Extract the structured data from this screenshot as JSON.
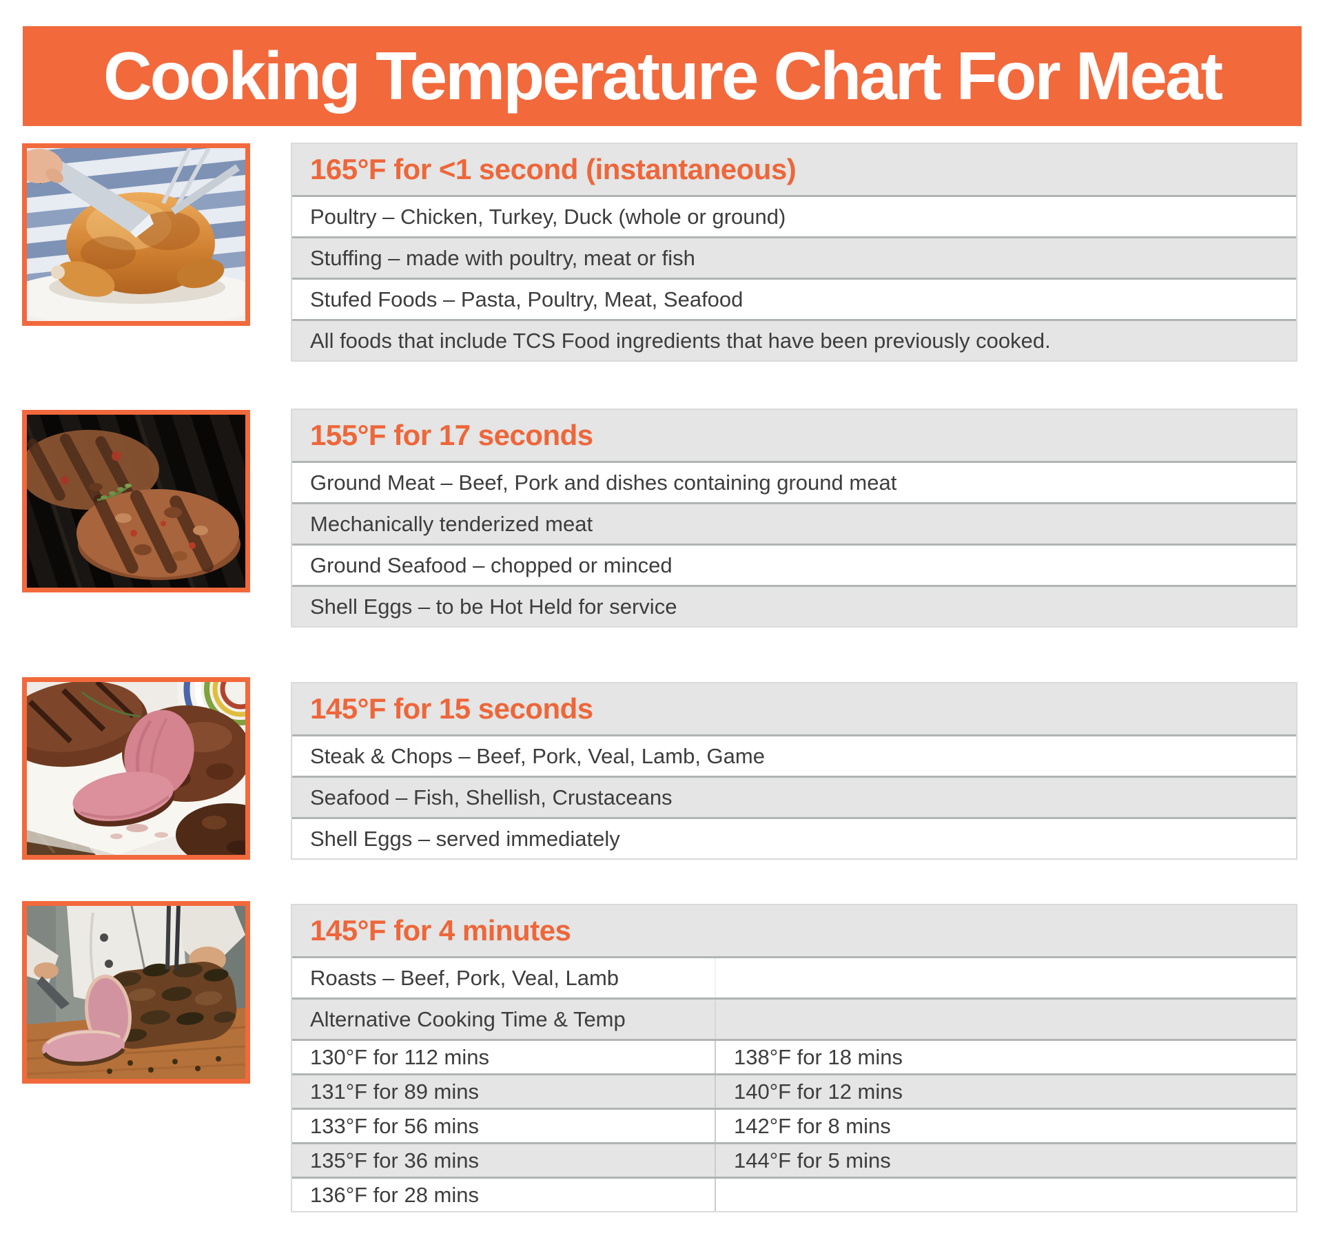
{
  "title": "Cooking Temperature Chart For Meat",
  "colors": {
    "accent_orange": "#F2693C",
    "header_text_orange": "#EE663A",
    "alt_row_gray": "#E4E5E4",
    "row_border_gray": "#B0B4B3",
    "body_text": "#3D3D3D"
  },
  "sections": [
    {
      "photo": "carving-roast-chicken-photo",
      "header": "165°F for <1 second (instantaneous)",
      "rows": [
        "Poultry – Chicken, Turkey, Duck (whole or ground)",
        "Stuffing – made with poultry, meat or fish",
        "Stufed Foods – Pasta, Poultry, Meat, Seafood",
        "All foods that include TCS Food ingredients that have been previously cooked."
      ]
    },
    {
      "photo": "burger-patties-on-grill-photo",
      "header": "155°F for 17 seconds",
      "rows": [
        "Ground Meat – Beef, Pork and dishes containing ground meat",
        "Mechanically tenderized meat",
        "Ground Seafood – chopped or minced",
        "Shell Eggs – to be Hot Held for service"
      ]
    },
    {
      "photo": "sliced-steak-photo",
      "header": "145°F for 15 seconds",
      "rows": [
        "Steak & Chops – Beef, Pork, Veal, Lamb, Game",
        "Seafood – Fish, Shellish, Crustaceans",
        "Shell Eggs – served immediately"
      ]
    },
    {
      "photo": "chef-carving-roast-photo",
      "header": "145°F for 4 minutes",
      "rows": [
        "Roasts – Beef, Pork, Veal, Lamb",
        "Alternative Cooking Time & Temp"
      ],
      "temp_rows": [
        [
          "130°F for 112 mins",
          "138°F for 18 mins"
        ],
        [
          "131°F for 89 mins",
          "140°F for 12 mins"
        ],
        [
          "133°F for 56 mins",
          "142°F for 8 mins"
        ],
        [
          "135°F for 36 mins",
          "144°F for 5 mins"
        ],
        [
          "136°F for 28 mins",
          ""
        ]
      ]
    }
  ]
}
